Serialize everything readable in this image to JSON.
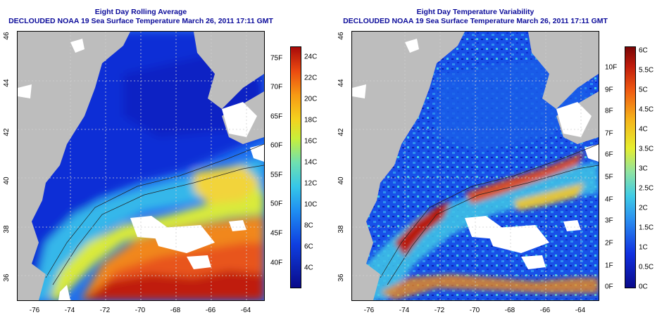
{
  "panels": [
    {
      "title_line1": "Eight Day Rolling Average",
      "title_line2": "DECLOUDED NOAA 19 Sea Surface Temperature March 26, 2011 17:11 GMT",
      "x_ticks": [
        "-76",
        "-74",
        "-72",
        "-70",
        "-68",
        "-66",
        "-64"
      ],
      "y_ticks": [
        "36",
        "38",
        "40",
        "42",
        "44",
        "46"
      ],
      "colorbar_f": [
        "40F",
        "45F",
        "50F",
        "55F",
        "60F",
        "65F",
        "70F",
        "75F"
      ],
      "colorbar_c": [
        "4C",
        "6C",
        "8C",
        "10C",
        "12C",
        "14C",
        "16C",
        "18C",
        "20C",
        "22C",
        "24C"
      ]
    },
    {
      "title_line1": "Eight Day Temperature Variability",
      "title_line2": "DECLOUDED NOAA 19 Sea Surface Temperature March 26, 2011 17:11 GMT",
      "x_ticks": [
        "-76",
        "-74",
        "-72",
        "-70",
        "-68",
        "-66",
        "-64"
      ],
      "y_ticks": [
        "36",
        "38",
        "40",
        "42",
        "44",
        "46"
      ],
      "colorbar_f": [
        "0F",
        "1F",
        "2F",
        "3F",
        "4F",
        "5F",
        "6F",
        "7F",
        "8F",
        "9F",
        "10F"
      ],
      "colorbar_c": [
        "0C",
        "0.5C",
        "1C",
        "1.5C",
        "2C",
        "2.5C",
        "3C",
        "3.5C",
        "4C",
        "4.5C",
        "5C",
        "5.5C",
        "6C"
      ]
    }
  ],
  "map_extent": {
    "lon": [
      -77,
      -63
    ],
    "lat": [
      35,
      46
    ]
  },
  "colors": {
    "land": "#bdbdbd",
    "cloud": "#ffffff",
    "title": "#0b0b9a"
  }
}
